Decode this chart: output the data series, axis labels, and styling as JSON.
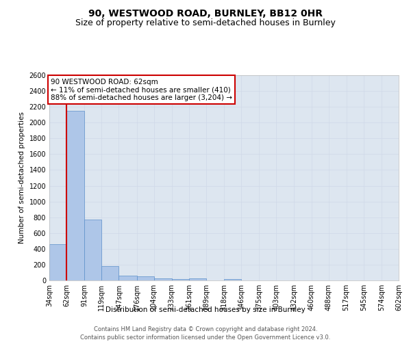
{
  "title": "90, WESTWOOD ROAD, BURNLEY, BB12 0HR",
  "subtitle": "Size of property relative to semi-detached houses in Burnley",
  "xlabel": "Distribution of semi-detached houses by size in Burnley",
  "ylabel": "Number of semi-detached properties",
  "annotation_line1": "90 WESTWOOD ROAD: 62sqm",
  "annotation_line2": "← 11% of semi-detached houses are smaller (410)",
  "annotation_line3": "88% of semi-detached houses are larger (3,204) →",
  "property_size_sqm": 62,
  "bar_left_edges": [
    34,
    62,
    91,
    119,
    147,
    176,
    204,
    233,
    261,
    289,
    318,
    346,
    375,
    403,
    432,
    460,
    488,
    517,
    545,
    574
  ],
  "bar_widths": [
    28,
    29,
    28,
    28,
    29,
    28,
    29,
    28,
    28,
    29,
    28,
    29,
    28,
    29,
    28,
    28,
    29,
    28,
    29,
    28
  ],
  "bar_heights": [
    460,
    2150,
    775,
    185,
    65,
    50,
    30,
    20,
    30,
    0,
    20,
    0,
    0,
    0,
    0,
    0,
    0,
    0,
    0,
    0
  ],
  "bar_color": "#aec6e8",
  "bar_edge_color": "#5b8fc9",
  "red_line_color": "#cc0000",
  "annotation_box_color": "#cc0000",
  "annotation_text_color": "#000000",
  "background_color": "#ffffff",
  "grid_color": "#d0d8e8",
  "ylim": [
    0,
    2600
  ],
  "yticks": [
    0,
    200,
    400,
    600,
    800,
    1000,
    1200,
    1400,
    1600,
    1800,
    2000,
    2200,
    2400,
    2600
  ],
  "xtick_labels": [
    "34sqm",
    "62sqm",
    "91sqm",
    "119sqm",
    "147sqm",
    "176sqm",
    "204sqm",
    "233sqm",
    "261sqm",
    "289sqm",
    "318sqm",
    "346sqm",
    "375sqm",
    "403sqm",
    "432sqm",
    "460sqm",
    "488sqm",
    "517sqm",
    "545sqm",
    "574sqm",
    "602sqm"
  ],
  "footer_line1": "Contains HM Land Registry data © Crown copyright and database right 2024.",
  "footer_line2": "Contains public sector information licensed under the Open Government Licence v3.0.",
  "title_fontsize": 10,
  "subtitle_fontsize": 9,
  "axis_label_fontsize": 7.5,
  "tick_fontsize": 7,
  "annotation_fontsize": 7.5,
  "footer_fontsize": 6
}
